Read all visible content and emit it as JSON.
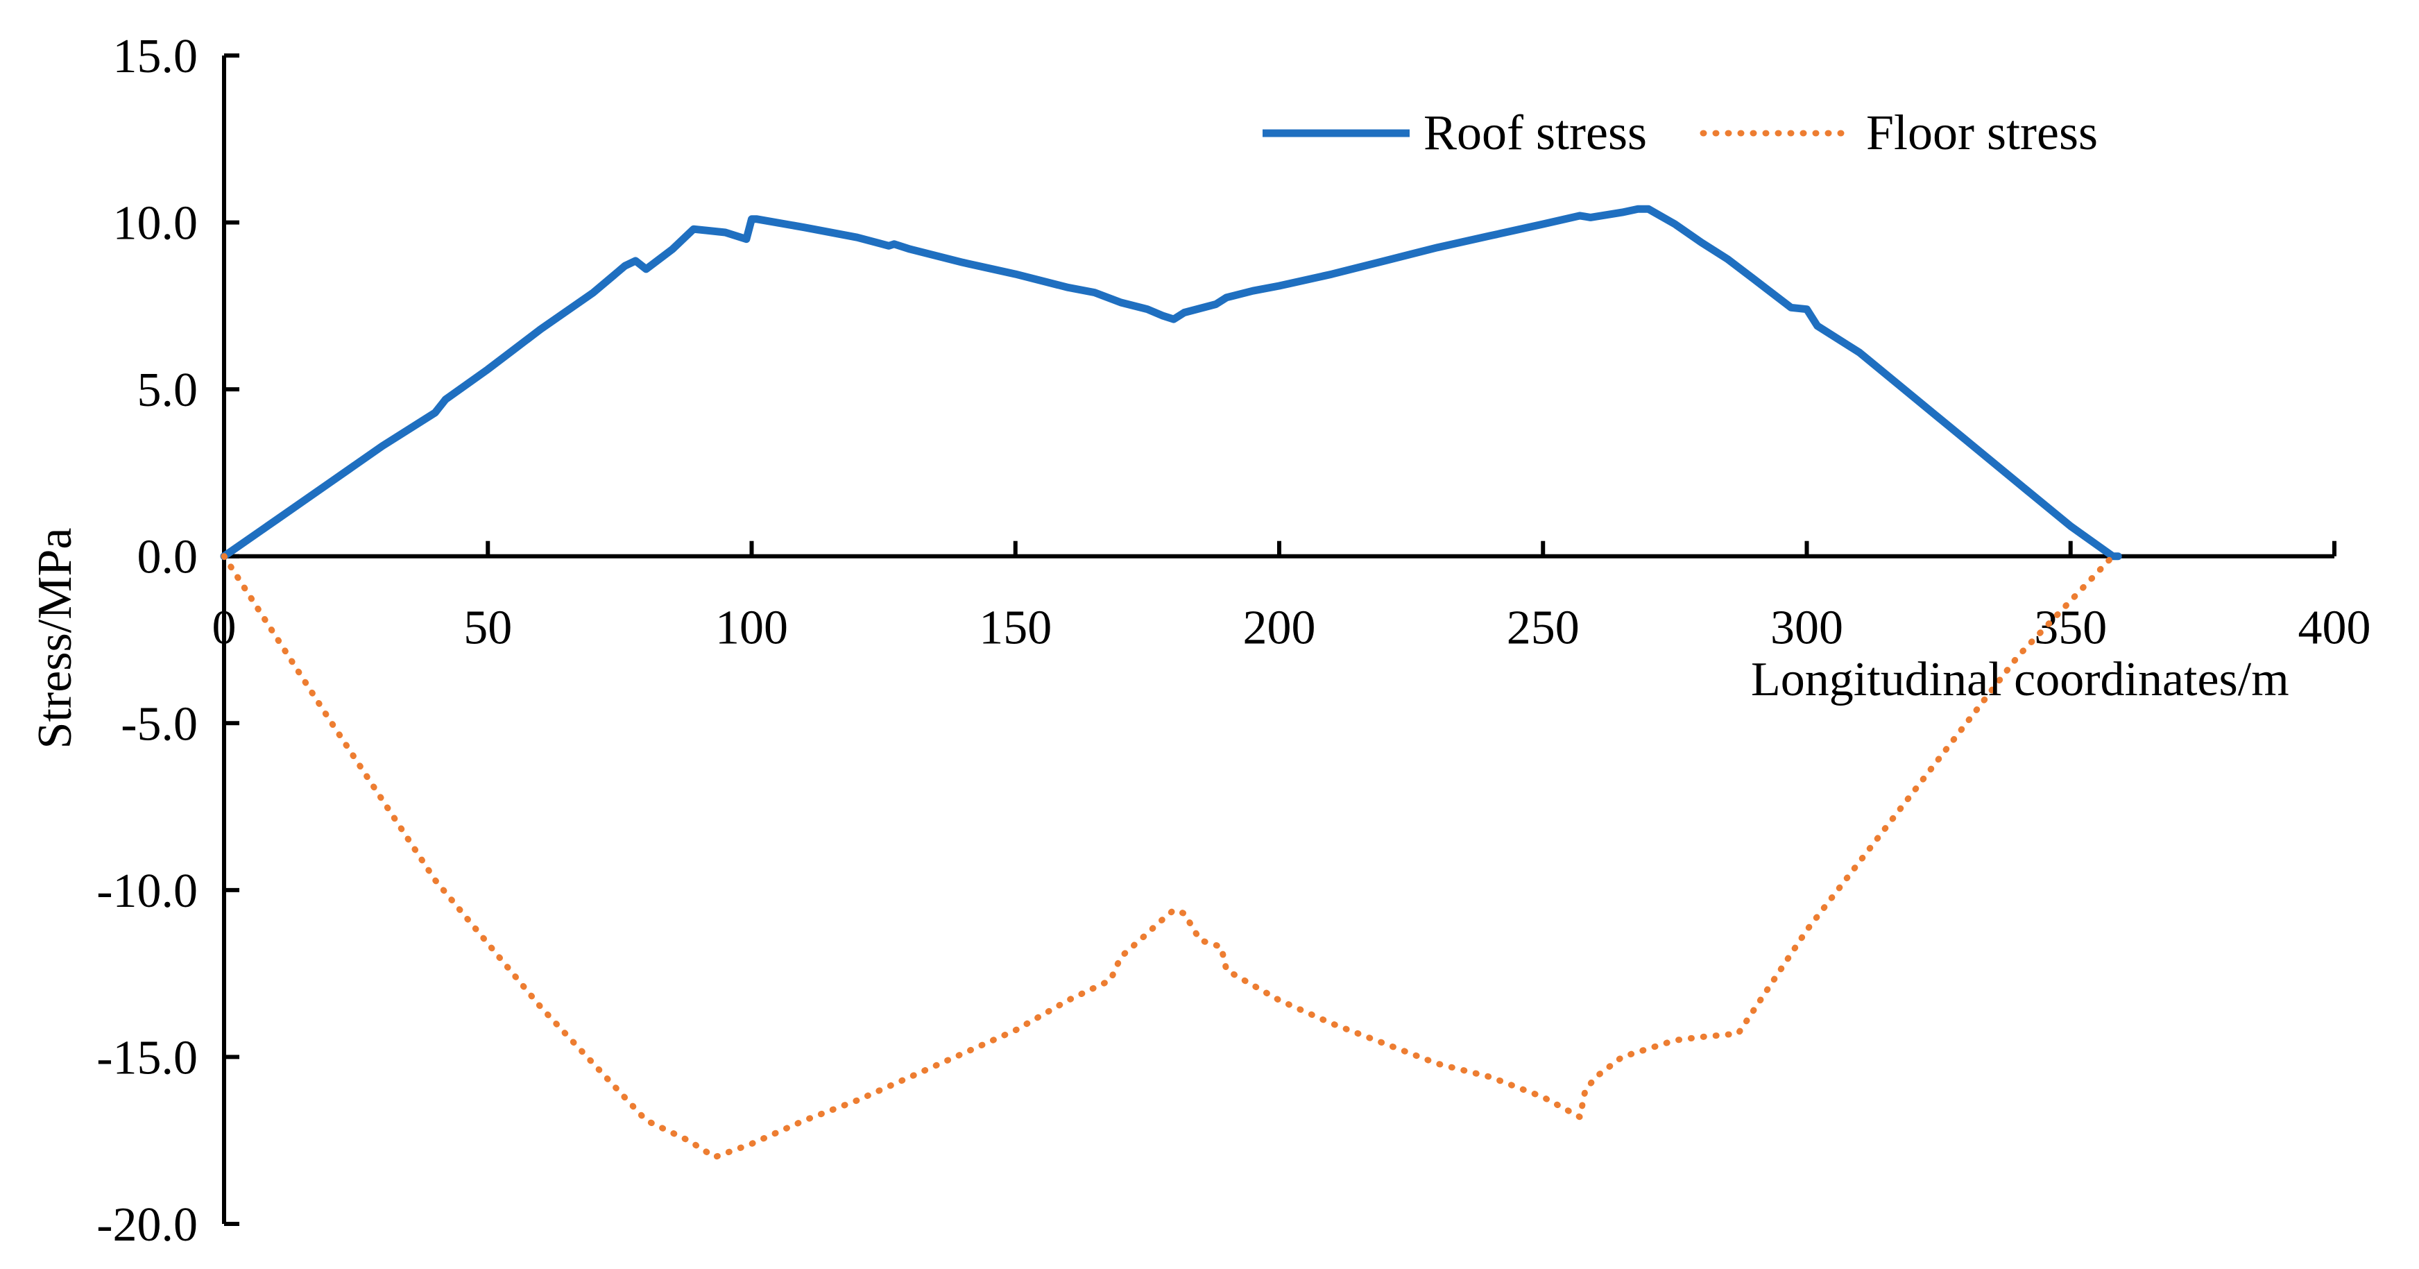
{
  "chart_data": {
    "type": "line",
    "title": "",
    "xlabel": "Longitudinal coordinates/m",
    "ylabel": "Stress/MPa",
    "xlim": [
      0,
      400
    ],
    "ylim": [
      -20,
      15
    ],
    "grid": false,
    "legend_position": "top-right",
    "x_ticks": [
      0,
      50,
      100,
      150,
      200,
      250,
      300,
      350,
      400
    ],
    "x_tick_labels": [
      "0",
      "50",
      "100",
      "150",
      "200",
      "250",
      "300",
      "350",
      "400"
    ],
    "y_ticks": [
      15,
      10,
      5,
      0,
      -5,
      -10,
      -15,
      -20
    ],
    "y_tick_labels": [
      "15.0",
      "10.0",
      "5.0",
      "0.0",
      "-5.0",
      "-10.0",
      "-15.0",
      "-20.0"
    ],
    "series": [
      {
        "name": "Roof stress",
        "style": "solid",
        "color": "#1F6FC0",
        "x": [
          0,
          10,
          20,
          30,
          40,
          42,
          50,
          60,
          70,
          76,
          78,
          80,
          85,
          89,
          95,
          99,
          100,
          101,
          110,
          120,
          126,
          127,
          130,
          140,
          150,
          160,
          165,
          170,
          175,
          178,
          180,
          182,
          188,
          190,
          195,
          200,
          210,
          220,
          230,
          240,
          250,
          257,
          259,
          265,
          268,
          270,
          275,
          280,
          285,
          290,
          297,
          300,
          302,
          310,
          320,
          330,
          340,
          350,
          358,
          359
        ],
        "y": [
          0,
          1.1,
          2.2,
          3.3,
          4.3,
          4.7,
          5.6,
          6.8,
          7.9,
          8.7,
          8.85,
          8.6,
          9.2,
          9.8,
          9.7,
          9.5,
          10.1,
          10.1,
          9.85,
          9.55,
          9.3,
          9.35,
          9.2,
          8.8,
          8.45,
          8.05,
          7.9,
          7.6,
          7.4,
          7.2,
          7.1,
          7.3,
          7.55,
          7.75,
          7.95,
          8.1,
          8.45,
          8.85,
          9.25,
          9.6,
          9.95,
          10.2,
          10.15,
          10.3,
          10.4,
          10.4,
          9.95,
          9.4,
          8.9,
          8.3,
          7.45,
          7.4,
          6.9,
          6.1,
          4.8,
          3.5,
          2.2,
          0.9,
          0.0,
          0.0
        ]
      },
      {
        "name": "Floor stress",
        "style": "dotted",
        "color": "#ED7D31",
        "x": [
          0,
          20,
          40,
          60,
          80,
          88,
          90,
          93,
          100,
          110,
          120,
          130,
          140,
          150,
          160,
          168,
          170,
          175,
          177,
          180,
          182,
          185,
          189,
          190,
          200,
          210,
          220,
          230,
          240,
          250,
          257,
          258,
          260,
          265,
          275,
          280,
          287,
          300,
          320,
          340,
          355,
          358
        ],
        "y": [
          0,
          -4.9,
          -9.7,
          -13.5,
          -16.9,
          -17.5,
          -17.7,
          -18.0,
          -17.6,
          -16.9,
          -16.3,
          -15.6,
          -14.9,
          -14.2,
          -13.3,
          -12.7,
          -12.0,
          -11.3,
          -11.0,
          -10.6,
          -10.7,
          -11.5,
          -11.7,
          -12.4,
          -13.3,
          -14.0,
          -14.6,
          -15.2,
          -15.6,
          -16.2,
          -16.8,
          -16.0,
          -15.6,
          -15.0,
          -14.5,
          -14.4,
          -14.3,
          -11.2,
          -7.1,
          -3.0,
          -0.5,
          0.0
        ]
      }
    ]
  }
}
